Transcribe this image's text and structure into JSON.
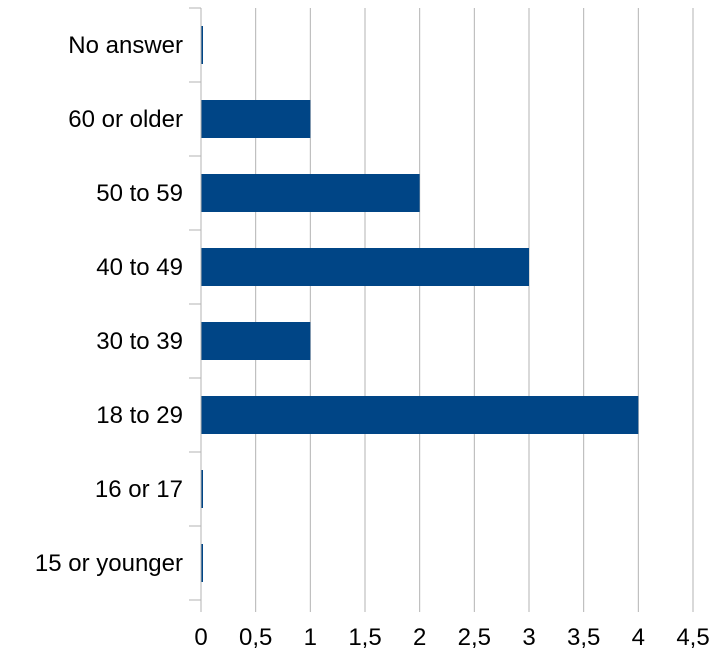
{
  "chart_data": {
    "type": "bar",
    "orientation": "horizontal",
    "categories": [
      "No answer",
      "60 or older",
      "50 to 59",
      "40 to 49",
      "30 to 39",
      "18 to 29",
      "16 or 17",
      "15 or younger"
    ],
    "values": [
      0,
      1,
      2,
      3,
      1,
      4,
      0,
      0
    ],
    "xlim": [
      0,
      4.5
    ],
    "xticks": [
      "0",
      "0,5",
      "1",
      "1,5",
      "2",
      "2,5",
      "3",
      "3,5",
      "4",
      "4,5"
    ],
    "grid": true,
    "legend": "none",
    "colors": {
      "bar": "#004586",
      "grid": "#b3b3b3",
      "axis": "#b3b3b3"
    }
  }
}
